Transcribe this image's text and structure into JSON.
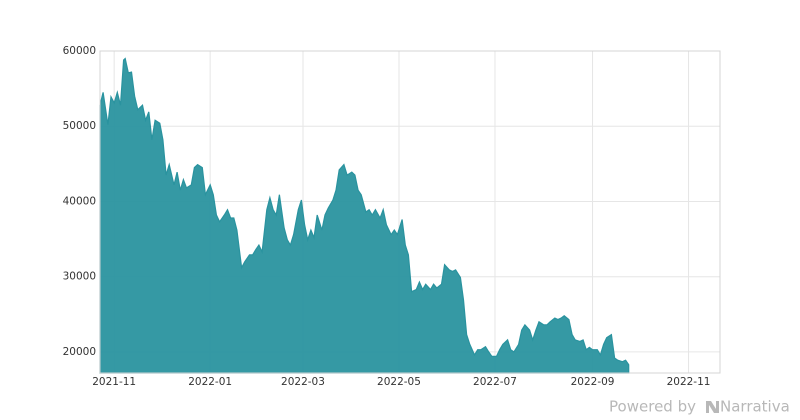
{
  "chart_data": {
    "type": "area",
    "x": [
      "2021-10-23",
      "2021-10-25",
      "2021-10-28",
      "2021-10-30",
      "2021-11-01",
      "2021-11-03",
      "2021-11-05",
      "2021-11-07",
      "2021-11-08",
      "2021-11-10",
      "2021-11-12",
      "2021-11-14",
      "2021-11-16",
      "2021-11-19",
      "2021-11-21",
      "2021-11-23",
      "2021-11-25",
      "2021-11-27",
      "2021-11-30",
      "2021-12-02",
      "2021-12-04",
      "2021-12-06",
      "2021-12-09",
      "2021-12-11",
      "2021-12-13",
      "2021-12-15",
      "2021-12-17",
      "2021-12-20",
      "2021-12-22",
      "2021-12-24",
      "2021-12-27",
      "2021-12-29",
      "2022-01-01",
      "2022-01-03",
      "2022-01-05",
      "2022-01-07",
      "2022-01-10",
      "2022-01-12",
      "2022-01-14",
      "2022-01-16",
      "2022-01-18",
      "2022-01-21",
      "2022-01-23",
      "2022-01-26",
      "2022-01-28",
      "2022-01-30",
      "2022-02-01",
      "2022-02-03",
      "2022-02-06",
      "2022-02-08",
      "2022-02-10",
      "2022-02-12",
      "2022-02-14",
      "2022-02-17",
      "2022-02-19",
      "2022-02-21",
      "2022-02-23",
      "2022-02-26",
      "2022-02-28",
      "2022-03-02",
      "2022-03-04",
      "2022-03-06",
      "2022-03-08",
      "2022-03-10",
      "2022-03-13",
      "2022-03-15",
      "2022-03-17",
      "2022-03-20",
      "2022-03-22",
      "2022-03-24",
      "2022-03-27",
      "2022-03-29",
      "2022-04-01",
      "2022-04-03",
      "2022-04-05",
      "2022-04-07",
      "2022-04-10",
      "2022-04-12",
      "2022-04-14",
      "2022-04-16",
      "2022-04-19",
      "2022-04-21",
      "2022-04-23",
      "2022-04-26",
      "2022-04-28",
      "2022-04-30",
      "2022-05-03",
      "2022-05-05",
      "2022-05-07",
      "2022-05-09",
      "2022-05-12",
      "2022-05-14",
      "2022-05-16",
      "2022-05-18",
      "2022-05-21",
      "2022-05-23",
      "2022-05-25",
      "2022-05-28",
      "2022-05-30",
      "2022-06-02",
      "2022-06-04",
      "2022-06-06",
      "2022-06-09",
      "2022-06-11",
      "2022-06-13",
      "2022-06-15",
      "2022-06-18",
      "2022-06-20",
      "2022-06-22",
      "2022-06-25",
      "2022-06-27",
      "2022-06-29",
      "2022-07-02",
      "2022-07-04",
      "2022-07-06",
      "2022-07-09",
      "2022-07-11",
      "2022-07-13",
      "2022-07-16",
      "2022-07-18",
      "2022-07-20",
      "2022-07-23",
      "2022-07-25",
      "2022-07-27",
      "2022-07-29",
      "2022-08-01",
      "2022-08-03",
      "2022-08-05",
      "2022-08-08",
      "2022-08-10",
      "2022-08-12",
      "2022-08-14",
      "2022-08-17",
      "2022-08-19",
      "2022-08-21",
      "2022-08-24",
      "2022-08-26",
      "2022-08-28",
      "2022-08-30",
      "2022-09-01",
      "2022-09-04",
      "2022-09-06",
      "2022-09-08",
      "2022-09-10",
      "2022-09-13",
      "2022-09-15",
      "2022-09-17",
      "2022-09-20",
      "2022-09-22",
      "2022-09-24"
    ],
    "values": [
      52800,
      54500,
      50200,
      53900,
      53100,
      54500,
      52800,
      58800,
      59000,
      57100,
      57200,
      54000,
      52200,
      52800,
      50800,
      51900,
      48200,
      50800,
      50400,
      48200,
      43500,
      44900,
      42200,
      43900,
      41500,
      42900,
      41800,
      42200,
      44500,
      44900,
      44500,
      40900,
      42200,
      40900,
      38200,
      37300,
      38200,
      38900,
      37800,
      37800,
      36200,
      31200,
      32000,
      32900,
      32900,
      33600,
      34200,
      33300,
      38900,
      40500,
      38900,
      38200,
      40900,
      36500,
      34900,
      34200,
      35600,
      38900,
      40200,
      36900,
      34900,
      36200,
      35200,
      38200,
      36200,
      38200,
      39100,
      40200,
      41500,
      44200,
      44900,
      43500,
      43900,
      43500,
      41500,
      40900,
      38600,
      38900,
      38200,
      38900,
      37800,
      38900,
      36900,
      35600,
      36200,
      35600,
      37600,
      34200,
      32900,
      28000,
      28300,
      29300,
      28300,
      29000,
      28300,
      29000,
      28500,
      29000,
      31600,
      30900,
      30700,
      30900,
      29900,
      26900,
      22300,
      21000,
      19600,
      20300,
      20300,
      20700,
      20000,
      19400,
      19400,
      20300,
      21000,
      21600,
      20300,
      20000,
      21000,
      22900,
      23600,
      22900,
      21600,
      22900,
      24000,
      23600,
      23600,
      24000,
      24500,
      24300,
      24500,
      24800,
      24300,
      22300,
      21600,
      21400,
      21600,
      20300,
      20600,
      20300,
      20300,
      19600,
      21000,
      21900,
      22300,
      19200,
      18900,
      18700,
      18900,
      18300
    ],
    "color": "#2a939f",
    "xlim": [
      "2021-10-23",
      "2022-11-21"
    ],
    "xticks": [
      {
        "value": "2021-11-01",
        "label": "2021-11"
      },
      {
        "value": "2022-01-01",
        "label": "2022-01"
      },
      {
        "value": "2022-03-01",
        "label": "2022-03"
      },
      {
        "value": "2022-05-01",
        "label": "2022-05"
      },
      {
        "value": "2022-07-01",
        "label": "2022-07"
      },
      {
        "value": "2022-09-01",
        "label": "2022-09"
      },
      {
        "value": "2022-11-01",
        "label": "2022-11"
      }
    ],
    "ylim": [
      17200,
      60000
    ],
    "yticks": [
      20000,
      30000,
      40000,
      50000,
      60000
    ],
    "grid": true
  },
  "credit": {
    "prefix": "Powered by",
    "brand": "Narrativa"
  }
}
